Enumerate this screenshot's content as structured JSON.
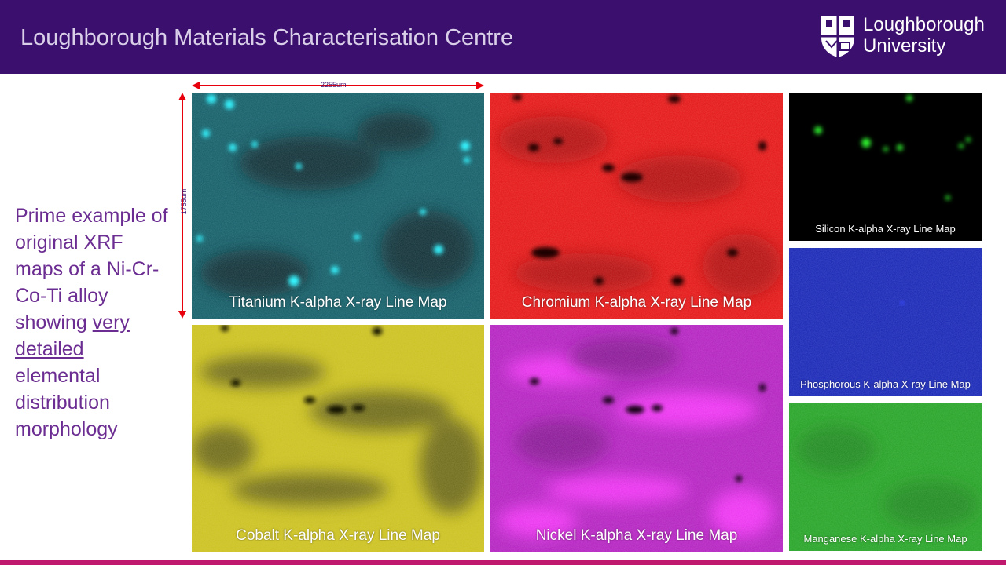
{
  "header": {
    "title": "Loughborough Materials Characterisation Centre",
    "logo_line1": "Loughborough",
    "logo_line2": "University"
  },
  "side_text": {
    "part1": "Prime example of original XRF maps of a Ni-Cr-Co-Ti alloy showing ",
    "underlined": "very detailed",
    "part2": " elemental distribution morphology"
  },
  "scale_bar": {
    "horizontal": "2255um",
    "vertical": "1755um"
  },
  "maps": {
    "titanium": "Titanium K-alpha X-ray Line Map",
    "chromium": "Chromium K-alpha X-ray Line Map",
    "cobalt": "Cobalt K-alpha X-ray Line Map",
    "nickel": "Nickel K-alpha X-ray Line Map",
    "silicon": "Silicon K-alpha X-ray Line Map",
    "phosphorous": "Phosphorous K-alpha X-ray Line Map",
    "manganese": "Manganese K-alpha X-ray Line Map"
  },
  "colors": {
    "header": "#3b0f6e",
    "text_purple": "#6b2d91",
    "accent_bar": "#c0186e",
    "scale_arrow": "#e8000c",
    "titanium": "#0e5a62",
    "chromium": "#e01010",
    "cobalt": "#c8bf10",
    "nickel": "#b81cc0",
    "silicon": "#000000",
    "phosphorous": "#1020b0",
    "manganese": "#22a020"
  }
}
